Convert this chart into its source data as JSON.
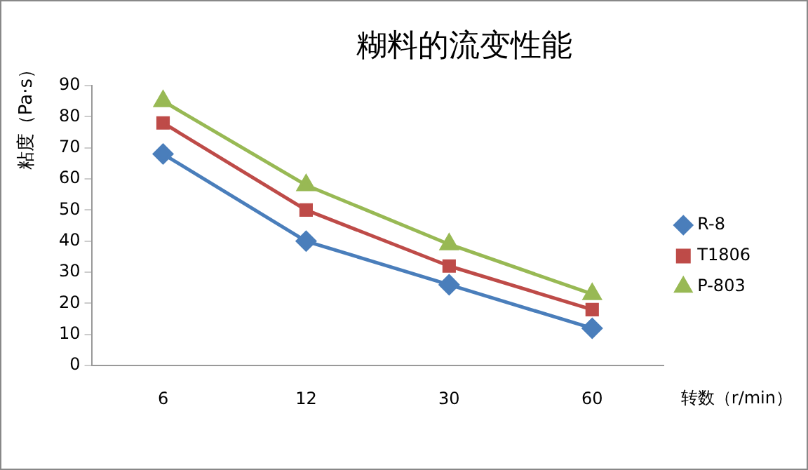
{
  "chart_data": {
    "type": "line",
    "title": "糊料的流变性能",
    "xlabel": "转数（r/min）",
    "ylabel": "粘度（Pa·s）",
    "categories": [
      "6",
      "12",
      "30",
      "60"
    ],
    "ylim": [
      0,
      90
    ],
    "yticks": [
      0,
      10,
      20,
      30,
      40,
      50,
      60,
      70,
      80,
      90
    ],
    "grid": false,
    "legend": "right",
    "series": [
      {
        "name": "R-8",
        "color": "#4a7ebb",
        "marker": "diamond",
        "values": [
          68,
          40,
          26,
          12
        ]
      },
      {
        "name": "T1806",
        "color": "#be4b48",
        "marker": "square",
        "values": [
          78,
          50,
          32,
          18
        ]
      },
      {
        "name": "P-803",
        "color": "#98b954",
        "marker": "triangle",
        "values": [
          85,
          58,
          39,
          23
        ]
      }
    ]
  }
}
